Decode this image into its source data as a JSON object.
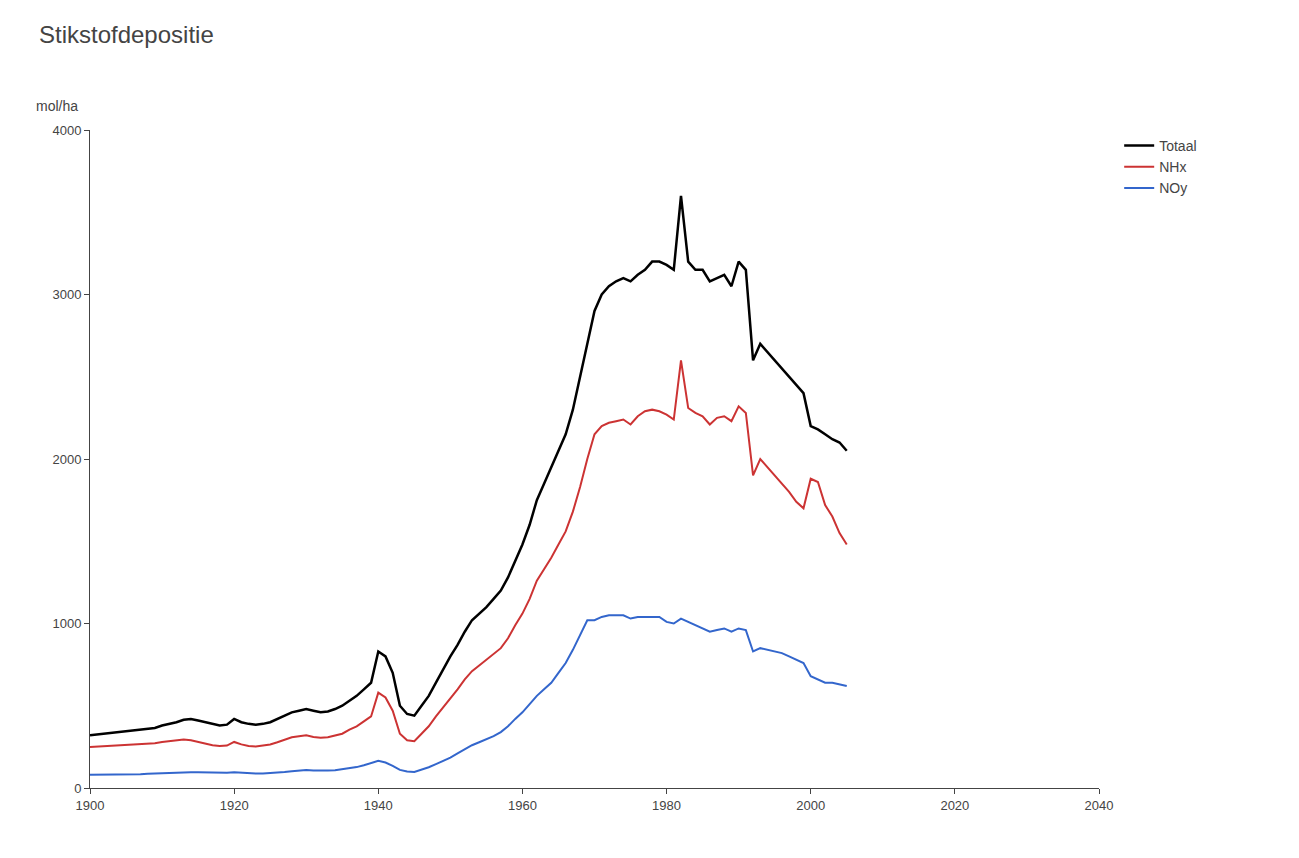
{
  "chart_data": {
    "type": "line",
    "title": "Stikstofdepositie",
    "ylabel": "mol/ha",
    "xlim": [
      1900,
      2040
    ],
    "ylim": [
      0,
      4000
    ],
    "xticks": [
      1900,
      1920,
      1940,
      1960,
      1980,
      2000,
      2020,
      2040
    ],
    "yticks": [
      0,
      1000,
      2000,
      3000,
      4000
    ],
    "grid": false,
    "legend": "right",
    "x": [
      1900,
      1901,
      1902,
      1903,
      1904,
      1905,
      1906,
      1907,
      1908,
      1909,
      1910,
      1911,
      1912,
      1913,
      1914,
      1915,
      1916,
      1917,
      1918,
      1919,
      1920,
      1921,
      1922,
      1923,
      1924,
      1925,
      1926,
      1927,
      1928,
      1929,
      1930,
      1931,
      1932,
      1933,
      1934,
      1935,
      1936,
      1937,
      1938,
      1939,
      1940,
      1941,
      1942,
      1943,
      1944,
      1945,
      1946,
      1947,
      1948,
      1949,
      1950,
      1951,
      1952,
      1953,
      1954,
      1955,
      1956,
      1957,
      1958,
      1959,
      1960,
      1961,
      1962,
      1963,
      1964,
      1965,
      1966,
      1967,
      1968,
      1969,
      1970,
      1971,
      1972,
      1973,
      1974,
      1975,
      1976,
      1977,
      1978,
      1979,
      1980,
      1981,
      1982,
      1983,
      1984,
      1985,
      1986,
      1987,
      1988,
      1989,
      1990,
      1991,
      1992,
      1993,
      1994,
      1995,
      1996,
      1997,
      1998,
      1999,
      2000,
      2001,
      2002,
      2003,
      2004,
      2005
    ],
    "series": [
      {
        "name": "Totaal",
        "color": "#000000",
        "values": [
          320,
          325,
          330,
          335,
          340,
          345,
          350,
          355,
          360,
          365,
          380,
          390,
          400,
          415,
          420,
          410,
          400,
          390,
          380,
          385,
          420,
          400,
          390,
          385,
          390,
          400,
          420,
          440,
          460,
          470,
          480,
          470,
          460,
          465,
          480,
          500,
          530,
          560,
          600,
          640,
          830,
          800,
          700,
          500,
          450,
          440,
          500,
          560,
          640,
          720,
          800,
          870,
          950,
          1020,
          1060,
          1100,
          1150,
          1200,
          1280,
          1380,
          1480,
          1600,
          1750,
          1850,
          1950,
          2050,
          2150,
          2300,
          2500,
          2700,
          2900,
          3000,
          3050,
          3080,
          3100,
          3080,
          3120,
          3150,
          3200,
          3200,
          3180,
          3150,
          3600,
          3200,
          3150,
          3150,
          3080,
          3100,
          3120,
          3050,
          3200,
          3150,
          2600,
          2700,
          2650,
          2600,
          2550,
          2500,
          2450,
          2400,
          2200,
          2180,
          2150,
          2120,
          2100,
          2050
        ]
      },
      {
        "name": "NHx",
        "color": "#cc3333",
        "values": [
          250,
          252,
          255,
          258,
          260,
          263,
          265,
          268,
          270,
          272,
          280,
          285,
          290,
          295,
          290,
          280,
          270,
          260,
          255,
          258,
          280,
          265,
          255,
          252,
          258,
          265,
          278,
          292,
          308,
          315,
          320,
          310,
          305,
          308,
          318,
          330,
          355,
          375,
          405,
          435,
          580,
          550,
          470,
          330,
          290,
          285,
          330,
          375,
          435,
          490,
          540,
          600,
          660,
          710,
          745,
          780,
          815,
          850,
          910,
          990,
          1060,
          1150,
          1260,
          1330,
          1400,
          1480,
          1560,
          1680,
          1830,
          2000,
          2150,
          2200,
          2220,
          2230,
          2240,
          2210,
          2260,
          2290,
          2300,
          2290,
          2270,
          2240,
          2600,
          2310,
          2280,
          2260,
          2210,
          2250,
          2260,
          2230,
          2320,
          2280,
          1900,
          2000,
          1950,
          1900,
          1850,
          1800,
          1740,
          1700,
          1880,
          1860,
          1720,
          1650,
          1550,
          1480
        ]
      },
      {
        "name": "NOy",
        "color": "#3366cc",
        "values": [
          80,
          80,
          80,
          80,
          80,
          82,
          83,
          84,
          86,
          88,
          90,
          92,
          94,
          96,
          96,
          95,
          94,
          93,
          92,
          93,
          95,
          92,
          90,
          88,
          88,
          90,
          93,
          97,
          102,
          106,
          110,
          107,
          105,
          106,
          108,
          114,
          120,
          127,
          138,
          150,
          165,
          155,
          135,
          110,
          100,
          98,
          110,
          126,
          145,
          165,
          185,
          210,
          235,
          260,
          278,
          295,
          315,
          340,
          375,
          420,
          460,
          510,
          560,
          600,
          640,
          700,
          760,
          840,
          930,
          1020,
          1020,
          1040,
          1050,
          1050,
          1050,
          1030,
          1040,
          1040,
          1040,
          1040,
          1010,
          1000,
          1030,
          1010,
          990,
          970,
          950,
          960,
          970,
          950,
          970,
          960,
          830,
          850,
          840,
          830,
          820,
          800,
          780,
          760,
          680,
          660,
          640,
          640,
          630,
          620
        ]
      }
    ]
  }
}
